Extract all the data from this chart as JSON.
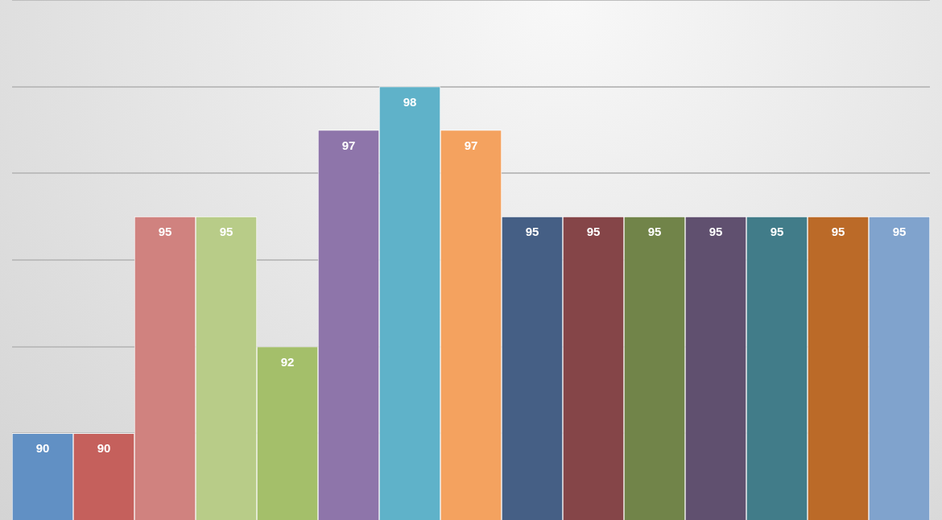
{
  "chart_data": {
    "type": "bar",
    "categories": [
      null,
      null,
      null,
      null,
      null,
      null,
      null,
      null,
      null,
      null,
      null,
      null,
      null,
      null,
      null
    ],
    "values": [
      90,
      90,
      95,
      95,
      92,
      97,
      98,
      97,
      95,
      95,
      95,
      95,
      95,
      95,
      95
    ],
    "colors": [
      "#6190c4",
      "#c5605c",
      "#d0827f",
      "#b8cc88",
      "#a4bf6a",
      "#8e75aa",
      "#5fb2c9",
      "#f4a25f",
      "#455f85",
      "#854548",
      "#718449",
      "#60506f",
      "#417c89",
      "#bb6a28",
      "#80a3cd"
    ],
    "grid": "y",
    "tick_labels": false,
    "data_labels": true
  }
}
